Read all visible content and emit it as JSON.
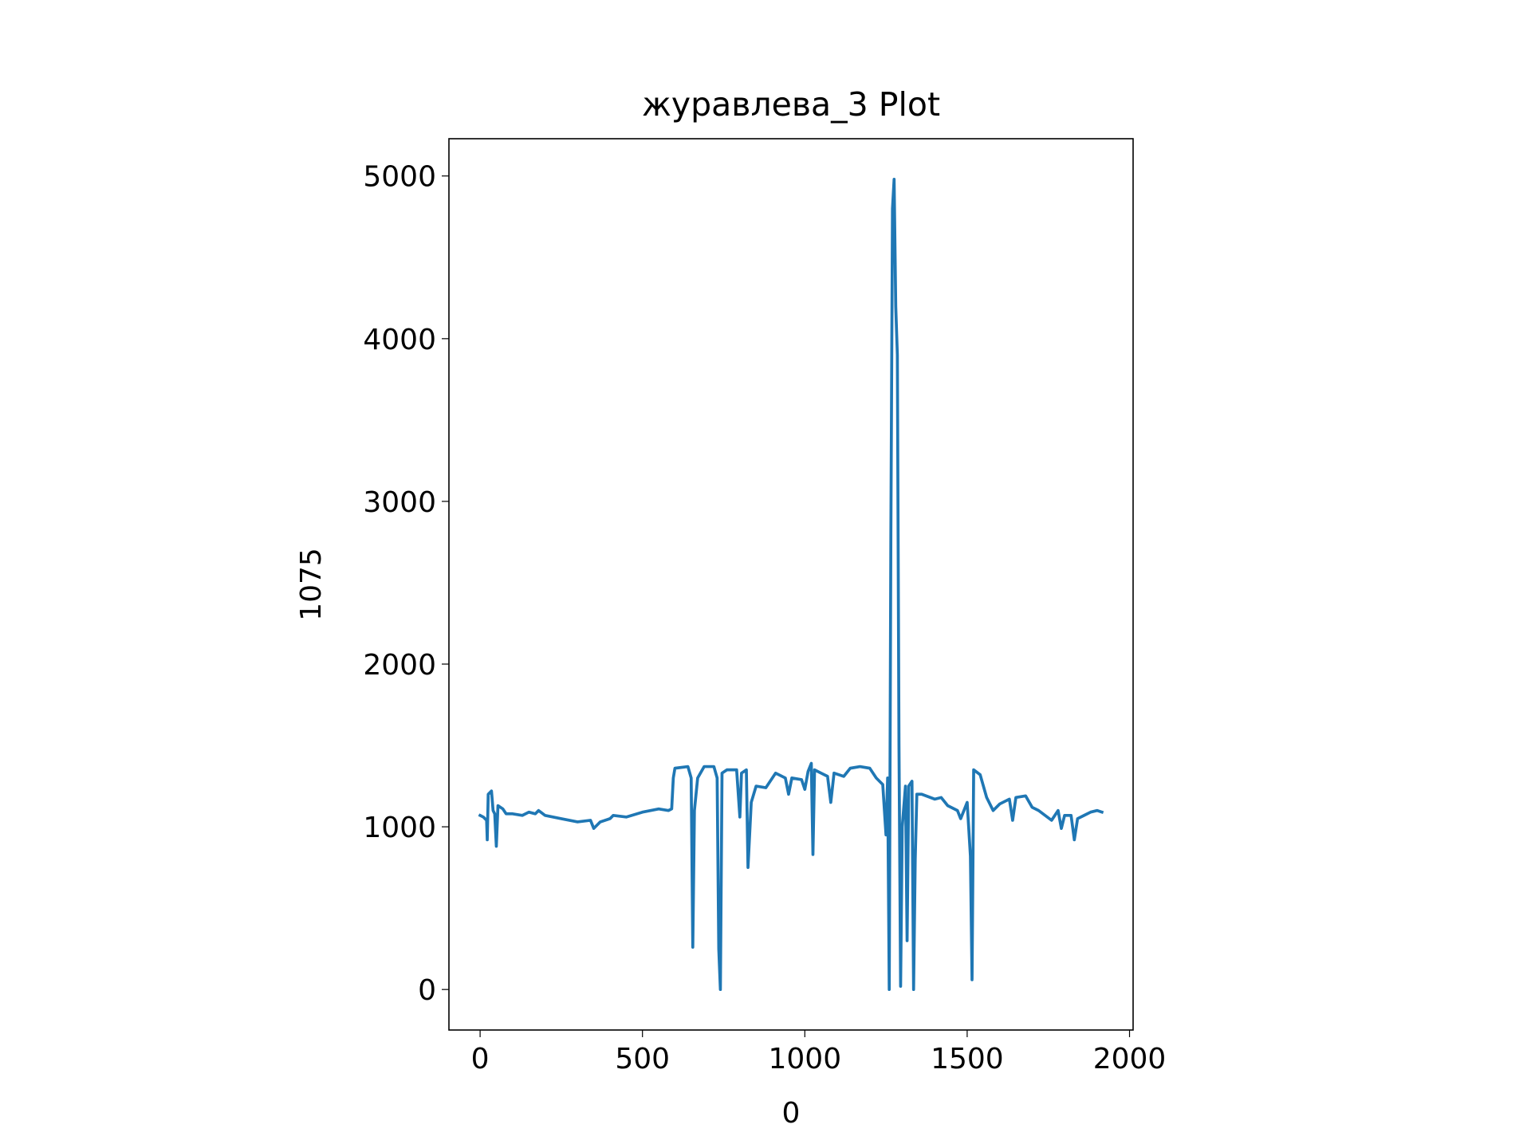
{
  "chart_data": {
    "type": "line",
    "title": "журавлева_3 Plot",
    "x_label": "0",
    "y_label": "1075",
    "xlim": [
      -96,
      2011
    ],
    "ylim": [
      -249,
      5229
    ],
    "xticks": [
      0,
      500,
      1000,
      1500,
      2000
    ],
    "yticks": [
      0,
      1000,
      2000,
      3000,
      4000,
      5000
    ],
    "grid": false,
    "series": [
      {
        "name": "1075",
        "color": "#1f77b4",
        "x": [
          0,
          10,
          20,
          22,
          25,
          35,
          40,
          45,
          50,
          55,
          70,
          80,
          100,
          130,
          150,
          170,
          180,
          200,
          250,
          300,
          340,
          350,
          370,
          400,
          410,
          450,
          500,
          550,
          580,
          590,
          595,
          600,
          640,
          650,
          655,
          660,
          670,
          690,
          720,
          730,
          735,
          740,
          745,
          760,
          790,
          800,
          805,
          820,
          825,
          835,
          850,
          880,
          900,
          910,
          940,
          950,
          960,
          990,
          1000,
          1010,
          1020,
          1025,
          1030,
          1050,
          1070,
          1080,
          1090,
          1120,
          1140,
          1170,
          1200,
          1220,
          1240,
          1250,
          1255,
          1260,
          1265,
          1270,
          1275,
          1280,
          1285,
          1290,
          1295,
          1300,
          1310,
          1315,
          1320,
          1330,
          1335,
          1340,
          1345,
          1360,
          1400,
          1420,
          1440,
          1470,
          1480,
          1500,
          1510,
          1515,
          1520,
          1540,
          1560,
          1580,
          1600,
          1630,
          1640,
          1650,
          1680,
          1700,
          1720,
          1740,
          1760,
          1780,
          1790,
          1800,
          1820,
          1830,
          1840,
          1860,
          1880,
          1900,
          1915
        ],
        "values": [
          1070,
          1060,
          1040,
          920,
          1200,
          1220,
          1100,
          1080,
          880,
          1130,
          1110,
          1080,
          1080,
          1070,
          1090,
          1080,
          1100,
          1070,
          1050,
          1030,
          1040,
          990,
          1030,
          1050,
          1070,
          1060,
          1090,
          1110,
          1100,
          1110,
          1300,
          1360,
          1370,
          1300,
          260,
          1100,
          1300,
          1370,
          1370,
          1300,
          250,
          0,
          1330,
          1350,
          1350,
          1060,
          1330,
          1350,
          750,
          1150,
          1250,
          1240,
          1300,
          1330,
          1300,
          1200,
          1300,
          1290,
          1230,
          1340,
          1390,
          830,
          1350,
          1330,
          1310,
          1150,
          1330,
          1310,
          1360,
          1370,
          1360,
          1300,
          1260,
          950,
          1300,
          0,
          2800,
          4800,
          4980,
          4200,
          3900,
          1500,
          20,
          1000,
          1250,
          300,
          1250,
          1280,
          0,
          800,
          1200,
          1200,
          1170,
          1180,
          1130,
          1100,
          1050,
          1150,
          820,
          60,
          1350,
          1320,
          1180,
          1100,
          1140,
          1170,
          1040,
          1180,
          1190,
          1120,
          1100,
          1070,
          1040,
          1100,
          990,
          1070,
          1070,
          920,
          1050,
          1070,
          1090,
          1100,
          1090
        ]
      }
    ]
  }
}
